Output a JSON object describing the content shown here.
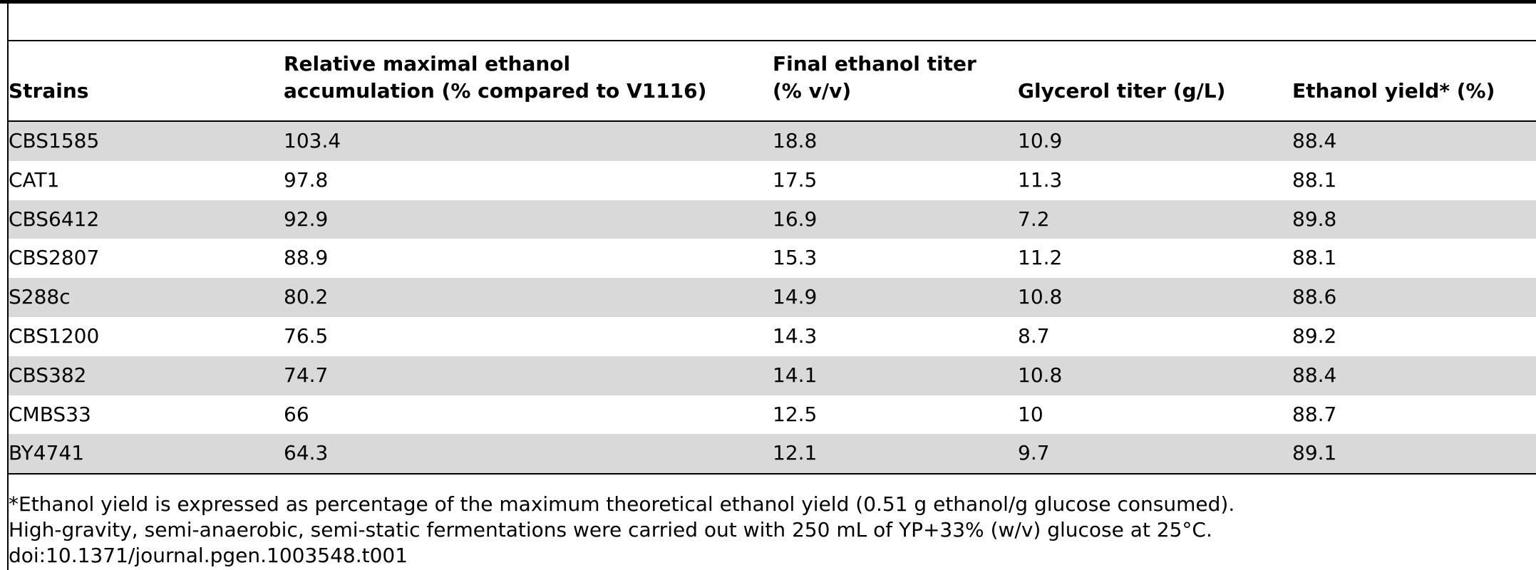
{
  "table": {
    "headers": [
      "Strains",
      "Relative maximal ethanol accumulation (% compared to V1116)",
      "Final ethanol titer (% v/v)",
      "Glycerol titer (g/L)",
      "Ethanol yield* (%)"
    ],
    "header_lines": [
      [
        "Strains"
      ],
      [
        "Relative maximal ethanol",
        "accumulation (% compared to V1116)"
      ],
      [
        "Final ethanol titer",
        "(% v/v)"
      ],
      [
        "Glycerol titer (g/L)"
      ],
      [
        "Ethanol yield* (%)"
      ]
    ],
    "rows": [
      [
        "CBS1585",
        "103.4",
        "18.8",
        "10.9",
        "88.4"
      ],
      [
        "CAT1",
        "97.8",
        "17.5",
        "11.3",
        "88.1"
      ],
      [
        "CBS6412",
        "92.9",
        "16.9",
        "7.2",
        "89.8"
      ],
      [
        "CBS2807",
        "88.9",
        "15.3",
        "11.2",
        "88.1"
      ],
      [
        "S288c",
        "80.2",
        "14.9",
        "10.8",
        "88.6"
      ],
      [
        "CBS1200",
        "76.5",
        "14.3",
        "8.7",
        "89.2"
      ],
      [
        "CBS382",
        "74.7",
        "14.1",
        "10.8",
        "88.4"
      ],
      [
        "CMBS33",
        "66",
        "12.5",
        "10",
        "88.7"
      ],
      [
        "BY4741",
        "64.3",
        "12.1",
        "9.7",
        "89.1"
      ]
    ],
    "shade_color": "#d9d9d9"
  },
  "footnotes": [
    "*Ethanol yield is expressed as percentage of the maximum theoretical ethanol yield (0.51 g ethanol/g glucose consumed).",
    "High-gravity, semi-anaerobic, semi-static fermentations were carried out with 250 mL of YP+33% (w/v) glucose at 25°C.",
    "doi:10.1371/journal.pgen.1003548.t001"
  ]
}
